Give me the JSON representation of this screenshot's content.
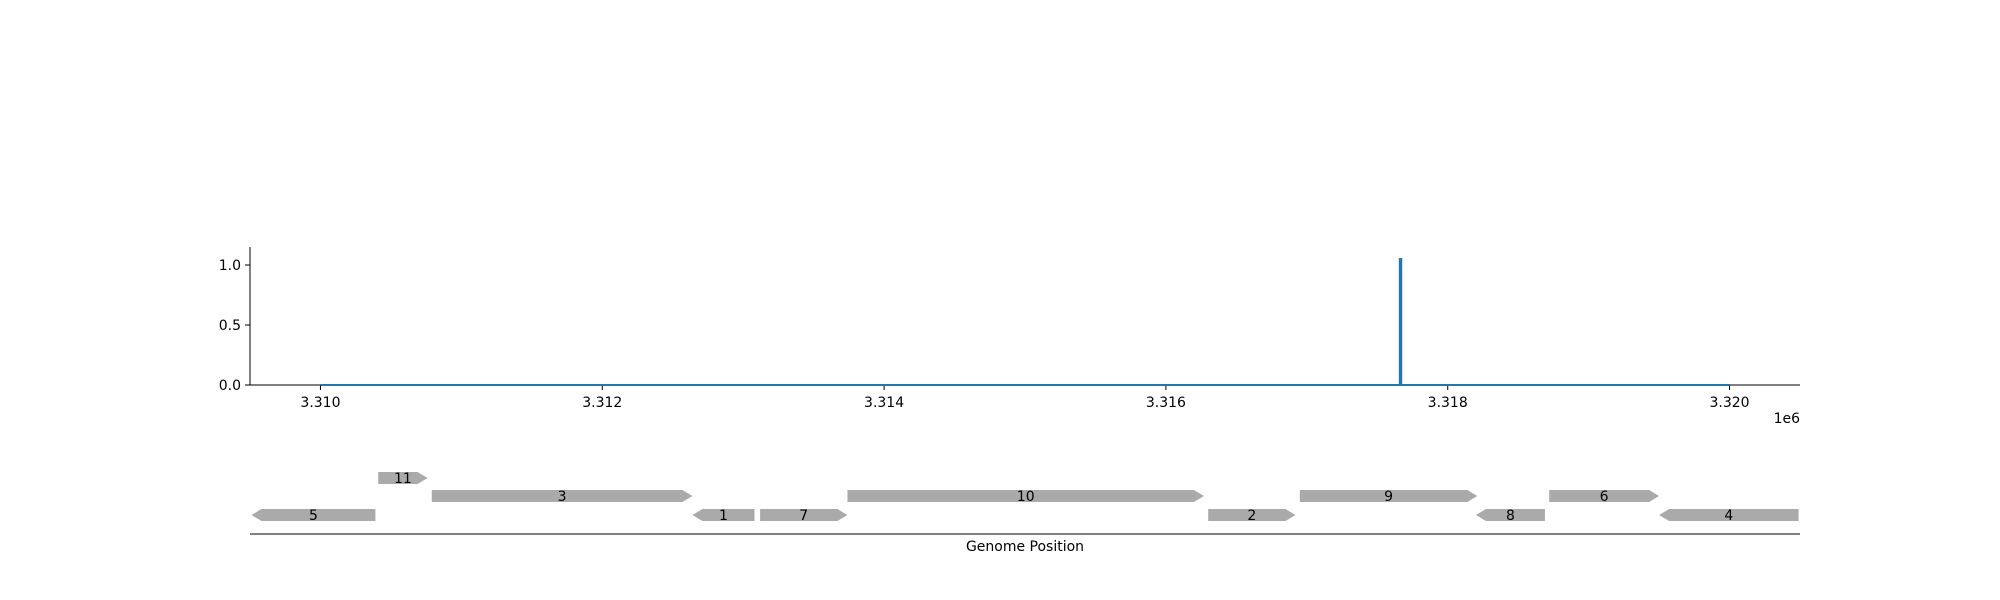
{
  "chart_data": {
    "type": "line",
    "xlim": [
      3309500,
      3320500
    ],
    "ylim": [
      0,
      1.15
    ],
    "x_offset_label": "1e6",
    "x_ticks": [
      {
        "value": 3310000,
        "label": "3.310"
      },
      {
        "value": 3312000,
        "label": "3.312"
      },
      {
        "value": 3314000,
        "label": "3.314"
      },
      {
        "value": 3316000,
        "label": "3.316"
      },
      {
        "value": 3318000,
        "label": "3.318"
      },
      {
        "value": 3320000,
        "label": "3.320"
      }
    ],
    "y_ticks": [
      {
        "value": 0.0,
        "label": "0.0"
      },
      {
        "value": 0.5,
        "label": "0.5"
      },
      {
        "value": 1.0,
        "label": "1.0"
      }
    ],
    "series": [
      {
        "color": "#1f77b4",
        "x": [
          3310000,
          3317660,
          3317660,
          3317670,
          3317670,
          3320000
        ],
        "y": [
          0,
          0,
          1.05,
          1.05,
          0,
          0
        ]
      }
    ],
    "genes": {
      "xlabel": "Genome Position",
      "color": "#aaaaaa",
      "items": [
        {
          "label": "11",
          "start": 3310410,
          "end": 3310760,
          "strand": "+",
          "row": 2
        },
        {
          "label": "3",
          "start": 3310790,
          "end": 3312640,
          "strand": "+",
          "row": 1
        },
        {
          "label": "5",
          "start": 3309510,
          "end": 3310390,
          "strand": "-",
          "row": 0
        },
        {
          "label": "1",
          "start": 3312640,
          "end": 3313080,
          "strand": "-",
          "row": 0
        },
        {
          "label": "7",
          "start": 3313120,
          "end": 3313740,
          "strand": "+",
          "row": 0
        },
        {
          "label": "10",
          "start": 3313740,
          "end": 3316270,
          "strand": "+",
          "row": 1
        },
        {
          "label": "2",
          "start": 3316300,
          "end": 3316920,
          "strand": "+",
          "row": 0
        },
        {
          "label": "9",
          "start": 3316950,
          "end": 3318210,
          "strand": "+",
          "row": 1
        },
        {
          "label": "8",
          "start": 3318200,
          "end": 3318690,
          "strand": "-",
          "row": 0
        },
        {
          "label": "6",
          "start": 3318720,
          "end": 3319500,
          "strand": "+",
          "row": 1
        },
        {
          "label": "4",
          "start": 3319500,
          "end": 3320490,
          "strand": "-",
          "row": 0
        }
      ]
    }
  }
}
